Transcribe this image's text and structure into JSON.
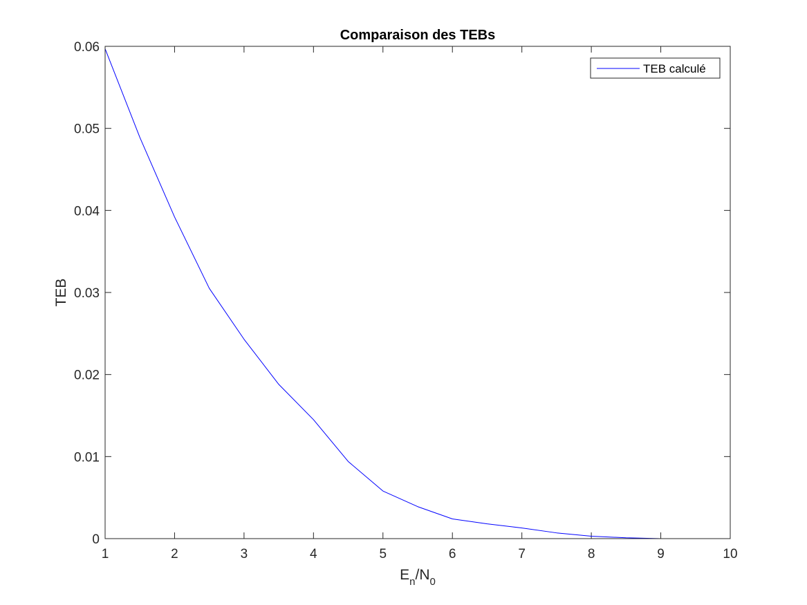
{
  "chart_data": {
    "type": "line",
    "title": "Comparaison des TEBs",
    "xlabel": {
      "base": "E",
      "base_sub": "n",
      "sep": "/",
      "denom": "N",
      "denom_sub": "0"
    },
    "ylabel": "TEB",
    "xlim": [
      1,
      10
    ],
    "ylim": [
      0,
      0.06
    ],
    "xticks": [
      1,
      2,
      3,
      4,
      5,
      6,
      7,
      8,
      9,
      10
    ],
    "xtick_labels": [
      "1",
      "2",
      "3",
      "4",
      "5",
      "6",
      "7",
      "8",
      "9",
      "10"
    ],
    "yticks": [
      0,
      0.01,
      0.02,
      0.03,
      0.04,
      0.05,
      0.06
    ],
    "ytick_labels": [
      "0",
      "0.01",
      "0.02",
      "0.03",
      "0.04",
      "0.05",
      "0.06"
    ],
    "grid": false,
    "legend_position": "top-right",
    "series": [
      {
        "name": "TEB calculé",
        "color": "#0000ff",
        "x": [
          1,
          1.5,
          2,
          2.5,
          3,
          3.5,
          4,
          4.5,
          5,
          5.5,
          6,
          6.5,
          7,
          7.5,
          8,
          8.5,
          9,
          9.5,
          10
        ],
        "y": [
          0.0597,
          0.0489,
          0.0392,
          0.0305,
          0.0243,
          0.0188,
          0.0145,
          0.0094,
          0.0058,
          0.0039,
          0.0024,
          0.0018,
          0.0013,
          0.0007,
          0.0003,
          0.0001,
          0.0,
          0.0,
          0.0
        ]
      }
    ]
  }
}
